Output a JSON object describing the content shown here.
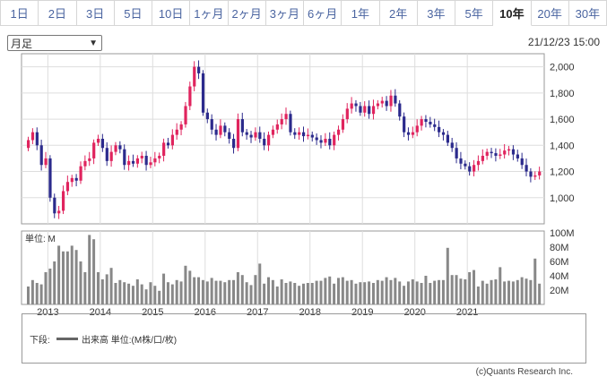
{
  "tabs": [
    {
      "label": "1日",
      "active": false
    },
    {
      "label": "2日",
      "active": false
    },
    {
      "label": "3日",
      "active": false
    },
    {
      "label": "5日",
      "active": false
    },
    {
      "label": "10日",
      "active": false
    },
    {
      "label": "1ヶ月",
      "active": false
    },
    {
      "label": "2ヶ月",
      "active": false
    },
    {
      "label": "3ヶ月",
      "active": false
    },
    {
      "label": "6ヶ月",
      "active": false
    },
    {
      "label": "1年",
      "active": false
    },
    {
      "label": "2年",
      "active": false
    },
    {
      "label": "3年",
      "active": false
    },
    {
      "label": "5年",
      "active": false
    },
    {
      "label": "10年",
      "active": true
    },
    {
      "label": "20年",
      "active": false
    },
    {
      "label": "30年",
      "active": false
    }
  ],
  "period_select": {
    "value": "月足"
  },
  "timestamp": "21/12/23 15:00",
  "legend": {
    "prefix": "下段:",
    "text": "出来高 単位:(M株/口/枚)"
  },
  "copyright": "(c)Quants Research Inc.",
  "colors": {
    "up": "#e0245e",
    "down": "#2b2a8c",
    "volume": "#888888",
    "grid": "#dddddd",
    "frame": "#999999"
  },
  "chart_data": [
    {
      "type": "candlestick",
      "y_ticks": [
        "1,000",
        "1,200",
        "1,400",
        "1,600",
        "1,800",
        "2,000"
      ],
      "ylim": [
        800,
        2100
      ],
      "x_ticks": [
        "2013",
        "2014",
        "2015",
        "2016",
        "2017",
        "2018",
        "2019",
        "2020",
        "2021"
      ],
      "close": [
        1440,
        1500,
        1400,
        1250,
        1300,
        1000,
        880,
        900,
        1050,
        1120,
        1150,
        1130,
        1240,
        1280,
        1300,
        1420,
        1450,
        1380,
        1280,
        1350,
        1400,
        1370,
        1250,
        1280,
        1260,
        1300,
        1320,
        1250,
        1270,
        1300,
        1320,
        1420,
        1400,
        1480,
        1520,
        1560,
        1700,
        1850,
        2000,
        1950,
        1650,
        1600,
        1520,
        1480,
        1550,
        1500,
        1450,
        1380,
        1600,
        1500,
        1480,
        1460,
        1500,
        1450,
        1400,
        1480,
        1520,
        1560,
        1600,
        1640,
        1500,
        1480,
        1500,
        1470,
        1480,
        1460,
        1440,
        1420,
        1450,
        1400,
        1480,
        1520,
        1600,
        1680,
        1720,
        1700,
        1650,
        1700,
        1640,
        1700,
        1720,
        1740,
        1700,
        1780,
        1720,
        1620,
        1500,
        1480,
        1500,
        1550,
        1600,
        1580,
        1560,
        1540,
        1500,
        1480,
        1420,
        1380,
        1300,
        1260,
        1240,
        1200,
        1250,
        1280,
        1320,
        1350,
        1340,
        1320,
        1330,
        1360,
        1370,
        1330,
        1300,
        1250,
        1200,
        1160,
        1170,
        1200
      ]
    },
    {
      "type": "bar",
      "unit_label": "単位: M",
      "y_ticks": [
        "20M",
        "40M",
        "60M",
        "80M",
        "100M"
      ],
      "ylim": [
        0,
        100
      ],
      "values": [
        25,
        34,
        30,
        28,
        45,
        50,
        60,
        82,
        74,
        74,
        82,
        76,
        60,
        45,
        97,
        91,
        45,
        35,
        42,
        51,
        30,
        34,
        31,
        29,
        26,
        35,
        28,
        21,
        31,
        26,
        19,
        43,
        31,
        28,
        34,
        32,
        54,
        47,
        38,
        38,
        34,
        32,
        37,
        33,
        33,
        31,
        34,
        34,
        45,
        41,
        31,
        27,
        41,
        57,
        29,
        38,
        34,
        25,
        35,
        30,
        32,
        30,
        26,
        29,
        30,
        30,
        33,
        33,
        37,
        39,
        29,
        37,
        38,
        33,
        34,
        29,
        31,
        31,
        32,
        30,
        34,
        33,
        38,
        34,
        37,
        32,
        26,
        32,
        35,
        32,
        30,
        40,
        30,
        33,
        34,
        34,
        79,
        41,
        41,
        36,
        35,
        45,
        48,
        25,
        33,
        29,
        34,
        35,
        52,
        32,
        33,
        32,
        34,
        38,
        36,
        34,
        64,
        29
      ]
    }
  ]
}
